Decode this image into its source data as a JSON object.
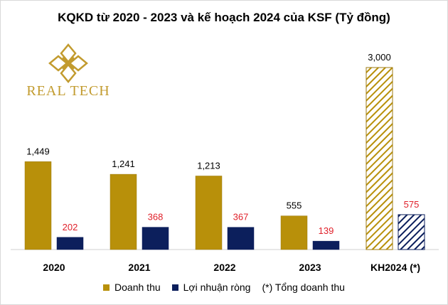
{
  "title": "KQKD từ 2020 - 2023 và kế hoạch 2024 của KSF (Tỷ đồng)",
  "logo": {
    "text": "REAL TECH",
    "icon": "real-tech-logo-icon"
  },
  "colors": {
    "revenue": "#b8900a",
    "profit": "#0c1f5c",
    "profit_label": "#e0202a",
    "revenue_label": "#000000",
    "axis": "#d0d0d0"
  },
  "chart_data": {
    "type": "bar",
    "title": "KQKD từ 2020 - 2023 và kế hoạch 2024 của KSF (Tỷ đồng)",
    "categories": [
      "2020",
      "2021",
      "2022",
      "2023",
      "KH2024 (*)"
    ],
    "series": [
      {
        "name": "Doanh thu",
        "values": [
          1449,
          1241,
          1213,
          555,
          3000
        ],
        "labels": [
          "1,449",
          "1,241",
          "1,213",
          "555",
          "3,000"
        ]
      },
      {
        "name": "Lợi nhuận ròng",
        "values": [
          202,
          368,
          367,
          139,
          575
        ],
        "labels": [
          "202",
          "368",
          "367",
          "139",
          "575"
        ]
      }
    ],
    "hatched_categories": [
      "KH2024 (*)"
    ],
    "ylim": [
      0,
      3000
    ],
    "legend": [
      "Doanh thu",
      "Lợi nhuận ròng",
      "(*) Tổng doanh thu"
    ],
    "legend_position": "bottom"
  }
}
